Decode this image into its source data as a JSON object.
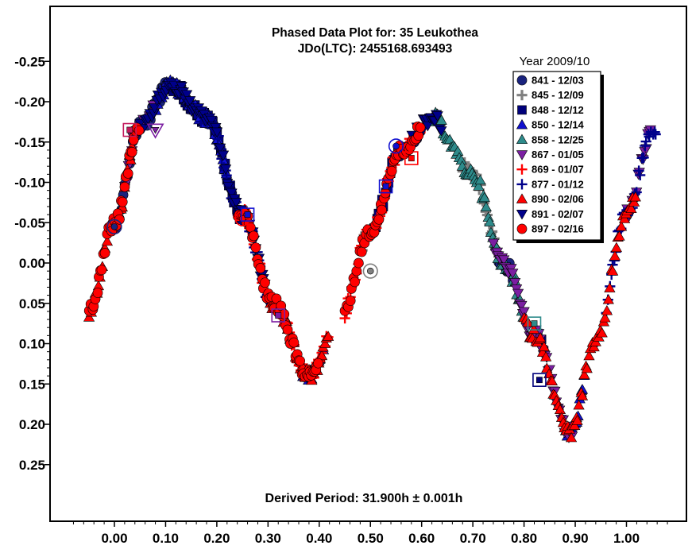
{
  "chart_data": {
    "type": "scatter",
    "title": "Phased Data Plot for: 35 Leukothea",
    "subtitle": "JDo(LTC): 2455168.693493",
    "footer": "Derived Period: 31.900h ± 0.001h",
    "xlabel": "",
    "ylabel": "",
    "xlim": [
      -0.12,
      1.12
    ],
    "ylim": [
      0.32,
      -0.32
    ],
    "y_inverted": true,
    "grid": false,
    "legend_title": "Year 2009/10",
    "legend_position": "top-right",
    "xticks": [
      "0.00",
      "0.10",
      "0.20",
      "0.30",
      "0.40",
      "0.50",
      "0.60",
      "0.70",
      "0.80",
      "0.90",
      "1.00"
    ],
    "yticks": [
      "-0.25",
      "-0.20",
      "-0.15",
      "-0.10",
      "-0.05",
      "0.00",
      "0.05",
      "0.10",
      "0.15",
      "0.20",
      "0.25"
    ],
    "series": [
      {
        "name": "841 - 12/03",
        "marker": "circle",
        "color": "#1a237e",
        "phase_ranges": [
          [
            0.0,
            0.12
          ],
          [
            0.55,
            0.6
          ],
          [
            0.75,
            0.78
          ]
        ]
      },
      {
        "name": "845 - 12/09",
        "marker": "plus-thick",
        "color": "#808080",
        "phase_ranges": [
          [
            0.48,
            0.52
          ],
          [
            0.68,
            0.75
          ]
        ]
      },
      {
        "name": "848 - 12/12",
        "marker": "square",
        "color": "#00007a",
        "phase_ranges": [
          [
            0.1,
            0.26
          ],
          [
            0.5,
            0.55
          ],
          [
            0.82,
            0.84
          ]
        ]
      },
      {
        "name": "850 - 12/14",
        "marker": "triangle-up",
        "color": "#1010d0",
        "phase_ranges": [
          [
            0.08,
            0.22
          ],
          [
            0.36,
            0.41
          ],
          [
            0.88,
            0.92
          ]
        ]
      },
      {
        "name": "858 - 12/25",
        "marker": "triangle-up",
        "color": "#2e8b8b",
        "phase_ranges": [
          [
            0.62,
            0.8
          ]
        ]
      },
      {
        "name": "867 - 01/05",
        "marker": "triangle-down",
        "color": "#7b1fa2",
        "phase_ranges": [
          [
            0.02,
            0.08
          ],
          [
            0.74,
            0.9
          ],
          [
            1.0,
            1.05
          ]
        ]
      },
      {
        "name": "869 - 01/07",
        "marker": "plus",
        "color": "#ff0000",
        "phase_ranges": [
          [
            0.25,
            0.42
          ],
          [
            0.45,
            0.6
          ]
        ]
      },
      {
        "name": "877 - 01/12",
        "marker": "plus",
        "color": "#00008b",
        "phase_ranges": [
          [
            0.15,
            0.3
          ],
          [
            0.96,
            1.06
          ]
        ]
      },
      {
        "name": "890 - 02/06",
        "marker": "triangle-up",
        "color": "#ff0000",
        "phase_ranges": [
          [
            -0.05,
            0.04
          ],
          [
            0.3,
            0.42
          ],
          [
            0.8,
            1.02
          ]
        ]
      },
      {
        "name": "891 - 02/07",
        "marker": "triangle-down",
        "color": "#00008b",
        "phase_ranges": [
          [
            0.05,
            0.3
          ],
          [
            0.58,
            0.64
          ]
        ]
      },
      {
        "name": "897 - 02/16",
        "marker": "circle",
        "color": "#ff0000",
        "phase_ranges": [
          [
            -0.05,
            0.05
          ],
          [
            0.24,
            0.4
          ],
          [
            0.45,
            0.6
          ]
        ]
      }
    ],
    "lightcurve_points": [
      {
        "x": -0.05,
        "y": 0.06
      },
      {
        "x": 0.0,
        "y": -0.05
      },
      {
        "x": 0.05,
        "y": -0.17
      },
      {
        "x": 0.11,
        "y": -0.22
      },
      {
        "x": 0.18,
        "y": -0.18
      },
      {
        "x": 0.25,
        "y": -0.06
      },
      {
        "x": 0.31,
        "y": 0.05
      },
      {
        "x": 0.38,
        "y": 0.14
      },
      {
        "x": 0.44,
        "y": 0.07
      },
      {
        "x": 0.5,
        "y": -0.04
      },
      {
        "x": 0.56,
        "y": -0.14
      },
      {
        "x": 0.62,
        "y": -0.18
      },
      {
        "x": 0.7,
        "y": -0.11
      },
      {
        "x": 0.76,
        "y": 0.0
      },
      {
        "x": 0.82,
        "y": 0.09
      },
      {
        "x": 0.89,
        "y": 0.21
      },
      {
        "x": 0.94,
        "y": 0.1
      },
      {
        "x": 1.0,
        "y": -0.06
      },
      {
        "x": 1.05,
        "y": -0.16
      }
    ],
    "highlighted_points": [
      {
        "x": 0.0,
        "y": -0.045,
        "marker": "circle",
        "color": "#1a237e"
      },
      {
        "x": 0.03,
        "y": -0.165,
        "marker": "square",
        "color": "#c2185b"
      },
      {
        "x": 0.08,
        "y": -0.165,
        "marker": "triangle-down",
        "color": "#7b1fa2"
      },
      {
        "x": 0.25,
        "y": -0.055,
        "marker": "circle",
        "color": "#ff0000"
      },
      {
        "x": 0.26,
        "y": -0.06,
        "marker": "square",
        "color": "#1010d0"
      },
      {
        "x": 0.32,
        "y": 0.065,
        "marker": "square",
        "color": "#7b1fa2"
      },
      {
        "x": 0.5,
        "y": 0.01,
        "marker": "circle",
        "color": "#808080"
      },
      {
        "x": 0.53,
        "y": -0.095,
        "marker": "square",
        "color": "#1010d0"
      },
      {
        "x": 0.55,
        "y": -0.145,
        "marker": "circle",
        "color": "#1010d0"
      },
      {
        "x": 0.58,
        "y": -0.13,
        "marker": "square",
        "color": "#ff0000"
      },
      {
        "x": 0.82,
        "y": 0.075,
        "marker": "square",
        "color": "#2e8b8b"
      },
      {
        "x": 0.83,
        "y": 0.145,
        "marker": "square",
        "color": "#00007a"
      }
    ]
  }
}
